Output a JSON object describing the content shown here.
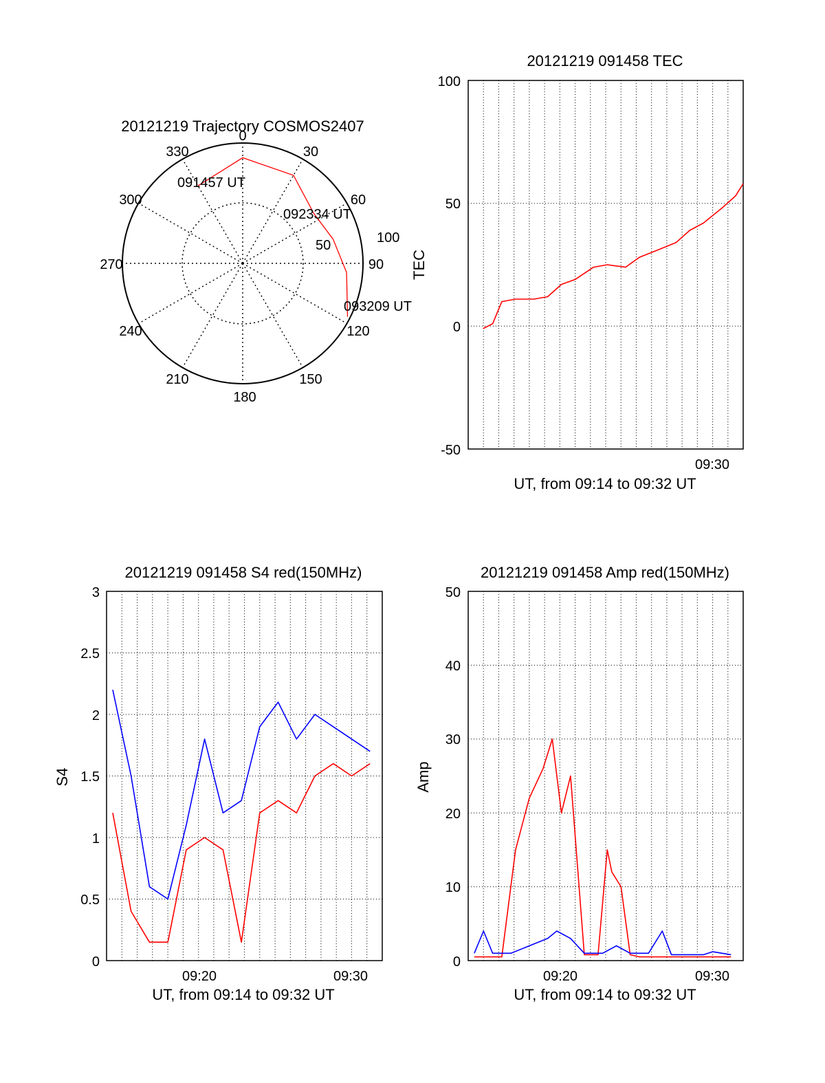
{
  "colors": {
    "red": "#ff0000",
    "blue": "#0000ff",
    "axis": "#000000",
    "grid": "#000000"
  },
  "chart_data": [
    {
      "type": "polar",
      "title": "20121219 Trajectory COSMOS2407",
      "angle_labels": [
        "0",
        "30",
        "60",
        "90",
        "120",
        "150",
        "180",
        "210",
        "240",
        "270",
        "300",
        "330"
      ],
      "radial_labels": [
        "50",
        "100"
      ],
      "grid": true,
      "series": [
        {
          "color": "#ff0000",
          "points": [
            {
              "az": 330,
              "el": 23
            },
            {
              "az": 0,
              "el": 11
            },
            {
              "az": 30,
              "el": 14
            },
            {
              "az": 55,
              "el": 25
            },
            {
              "az": 75,
              "el": 20
            },
            {
              "az": 95,
              "el": 12
            },
            {
              "az": 117,
              "el": 2
            }
          ]
        }
      ],
      "annotations": [
        {
          "text": "091457 UT",
          "az": 330,
          "el": 23
        },
        {
          "text": "092334 UT",
          "az": 55,
          "el": 25
        },
        {
          "text": "093209 UT",
          "az": 117,
          "el": 2
        }
      ]
    },
    {
      "type": "line",
      "title": "20121219 091458 TEC",
      "xlabel": "UT, from 09:14 to 09:32 UT",
      "ylabel": "TEC",
      "xlim": [
        9.2333,
        9.5333
      ],
      "ylim": [
        -50,
        100
      ],
      "yticks": [
        "-50",
        "0",
        "50",
        "100"
      ],
      "xticks": [
        {
          "label": "09:30",
          "x": 9.5
        }
      ],
      "grid": true,
      "series": [
        {
          "color": "#ff0000",
          "x": [
            9.2495,
            9.26,
            9.27,
            9.285,
            9.305,
            9.32,
            9.335,
            9.35,
            9.37,
            9.385,
            9.405,
            9.42,
            9.44,
            9.46,
            9.475,
            9.49,
            9.51,
            9.525,
            9.5333
          ],
          "y": [
            -1,
            1,
            10,
            11,
            11,
            12,
            17,
            19,
            24,
            25,
            24,
            28,
            31,
            34,
            39,
            42,
            48,
            53,
            58
          ]
        }
      ]
    },
    {
      "type": "line",
      "title": "20121219 091458 S4 red(150MHz)",
      "xlabel": "UT, from 09:14 to 09:32 UT",
      "ylabel": "S4",
      "xlim": [
        9.2333,
        9.5333
      ],
      "ylim": [
        0,
        3
      ],
      "yticks": [
        "0",
        "0.5",
        "1",
        "1.5",
        "2",
        "2.5",
        "3"
      ],
      "xticks": [
        {
          "label": "09:20",
          "x": 9.3333
        },
        {
          "label": "09:30",
          "x": 9.5
        }
      ],
      "grid": true,
      "series": [
        {
          "color": "#ff0000",
          "x": [
            9.24,
            9.26,
            9.28,
            9.3,
            9.32,
            9.34,
            9.36,
            9.38,
            9.4,
            9.42,
            9.44,
            9.46,
            9.48,
            9.5,
            9.52
          ],
          "y": [
            1.2,
            0.4,
            0.15,
            0.15,
            0.9,
            1.0,
            0.9,
            0.15,
            1.2,
            1.3,
            1.2,
            1.5,
            1.6,
            1.5,
            1.6
          ]
        },
        {
          "color": "#0000ff",
          "x": [
            9.24,
            9.26,
            9.28,
            9.3,
            9.32,
            9.34,
            9.36,
            9.38,
            9.4,
            9.42,
            9.44,
            9.46,
            9.48,
            9.5,
            9.52
          ],
          "y": [
            2.2,
            1.5,
            0.6,
            0.5,
            1.1,
            1.8,
            1.2,
            1.3,
            1.9,
            2.1,
            1.8,
            2.0,
            1.9,
            1.8,
            1.7
          ]
        }
      ]
    },
    {
      "type": "line",
      "title": "20121219 091458 Amp red(150MHz)",
      "xlabel": "UT, from 09:14 to 09:32 UT",
      "ylabel": "Amp",
      "xlim": [
        9.2333,
        9.5333
      ],
      "ylim": [
        0,
        50
      ],
      "yticks": [
        "0",
        "10",
        "20",
        "30",
        "40",
        "50"
      ],
      "xticks": [
        {
          "label": "09:20",
          "x": 9.3333
        },
        {
          "label": "09:30",
          "x": 9.5
        }
      ],
      "grid": true,
      "series": [
        {
          "color": "#ff0000",
          "x": [
            9.24,
            9.27,
            9.285,
            9.3,
            9.315,
            9.325,
            9.335,
            9.345,
            9.36,
            9.375,
            9.385,
            9.39,
            9.4,
            9.41,
            9.42,
            9.44,
            9.46,
            9.48,
            9.5,
            9.52
          ],
          "y": [
            0.5,
            0.5,
            15,
            22,
            26,
            30,
            20,
            25,
            0.8,
            0.8,
            15,
            12,
            10,
            0.8,
            0.5,
            0.5,
            0.5,
            0.5,
            0.5,
            0.5
          ]
        },
        {
          "color": "#0000ff",
          "x": [
            9.24,
            9.25,
            9.26,
            9.28,
            9.3,
            9.32,
            9.33,
            9.345,
            9.36,
            9.38,
            9.395,
            9.41,
            9.43,
            9.445,
            9.455,
            9.47,
            9.49,
            9.5,
            9.52
          ],
          "y": [
            1,
            4,
            1,
            1,
            2,
            3,
            4,
            3,
            1,
            1,
            2,
            1,
            1,
            4,
            0.8,
            0.8,
            0.8,
            1.2,
            0.8
          ]
        }
      ]
    }
  ]
}
